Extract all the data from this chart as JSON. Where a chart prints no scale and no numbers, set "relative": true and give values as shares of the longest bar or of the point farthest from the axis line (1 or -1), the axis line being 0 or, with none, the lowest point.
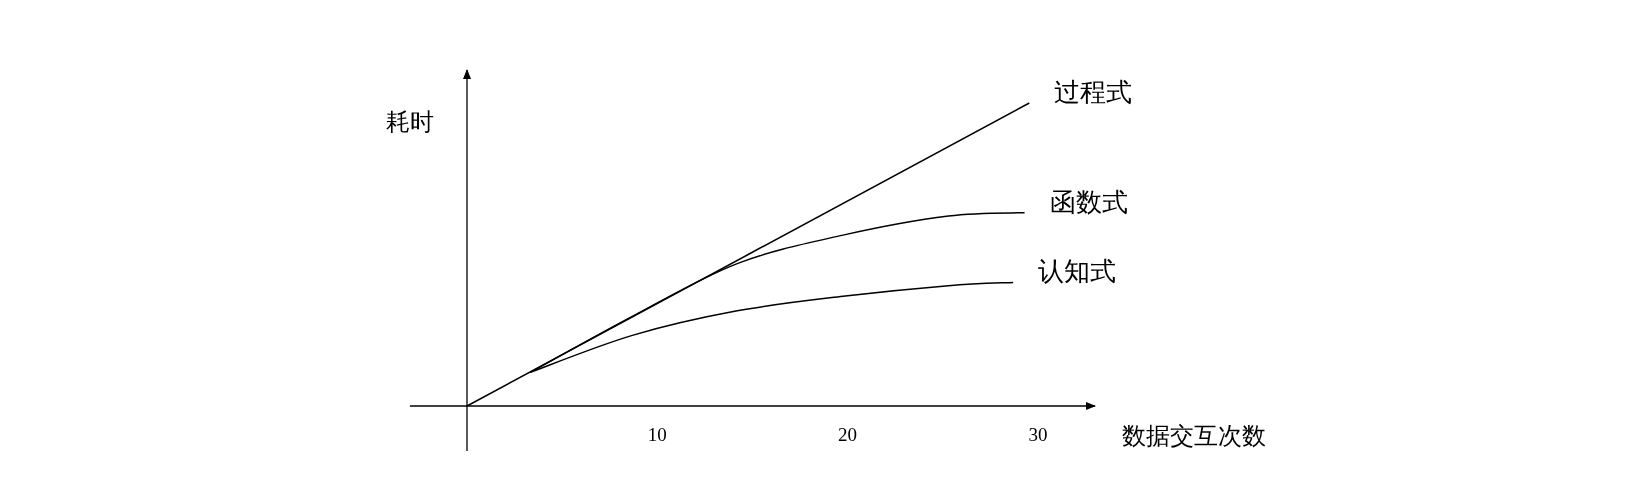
{
  "chart_data": {
    "type": "line",
    "relative": true,
    "xlabel": "数据交互次数",
    "ylabel": "耗时",
    "xlim": [
      -3,
      33
    ],
    "xticks": [
      10,
      20,
      30
    ],
    "grid": false,
    "marker": "none",
    "line_style": "solid",
    "series": [
      {
        "name": "过程式",
        "color": "#000000",
        "x": [
          0,
          29.55
        ],
        "values": [
          0,
          1
        ]
      },
      {
        "name": "函数式",
        "color": "#000000",
        "x": [
          3.32,
          8.69,
          14.2,
          19.76,
          25.3,
          29.3
        ],
        "values": [
          0.111,
          0.296,
          0.47,
          0.564,
          0.627,
          0.638
        ]
      },
      {
        "name": "认知式",
        "color": "#000000",
        "x": [
          3.32,
          8.69,
          14.2,
          19.76,
          25.3,
          28.7
        ],
        "values": [
          0.111,
          0.233,
          0.314,
          0.362,
          0.397,
          0.408
        ]
      }
    ]
  }
}
